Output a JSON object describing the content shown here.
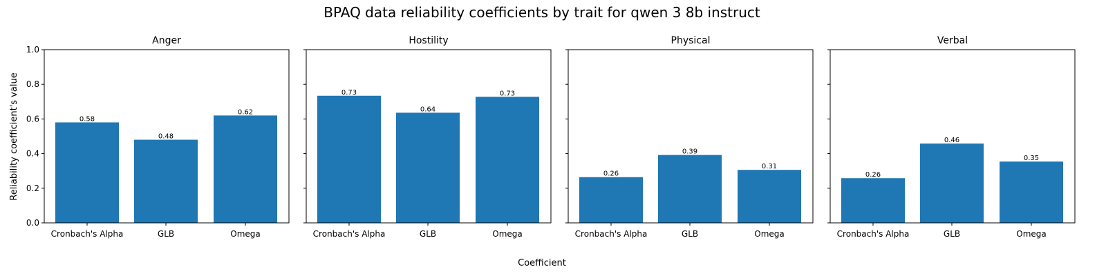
{
  "title": "BPAQ data reliability coefficients by trait for qwen 3 8b instruct",
  "xlabel": "Coefficient",
  "ylabel": "Reliability coefficient's value",
  "bar_color": "#1f77b4",
  "chart_data": [
    {
      "type": "bar",
      "title": "Anger",
      "categories": [
        "Cronbach's Alpha",
        "GLB",
        "Omega"
      ],
      "values": [
        0.58,
        0.48,
        0.62
      ],
      "labels": [
        "0.58",
        "0.48",
        "0.62"
      ],
      "ylim": [
        0,
        1
      ],
      "yticks": [
        "0.0",
        "0.2",
        "0.4",
        "0.6",
        "0.8",
        "1.0"
      ]
    },
    {
      "type": "bar",
      "title": "Hostility",
      "categories": [
        "Cronbach's Alpha",
        "GLB",
        "Omega"
      ],
      "values": [
        0.734,
        0.636,
        0.728
      ],
      "labels": [
        "0.73",
        "0.64",
        "0.73"
      ],
      "ylim": [
        0,
        1
      ]
    },
    {
      "type": "bar",
      "title": "Physical",
      "categories": [
        "Cronbach's Alpha",
        "GLB",
        "Omega"
      ],
      "values": [
        0.264,
        0.392,
        0.306
      ],
      "labels": [
        "0.26",
        "0.39",
        "0.31"
      ],
      "ylim": [
        0,
        1
      ]
    },
    {
      "type": "bar",
      "title": "Verbal",
      "categories": [
        "Cronbach's Alpha",
        "GLB",
        "Omega"
      ],
      "values": [
        0.258,
        0.458,
        0.354
      ],
      "labels": [
        "0.26",
        "0.46",
        "0.35"
      ],
      "ylim": [
        0,
        1
      ]
    }
  ]
}
